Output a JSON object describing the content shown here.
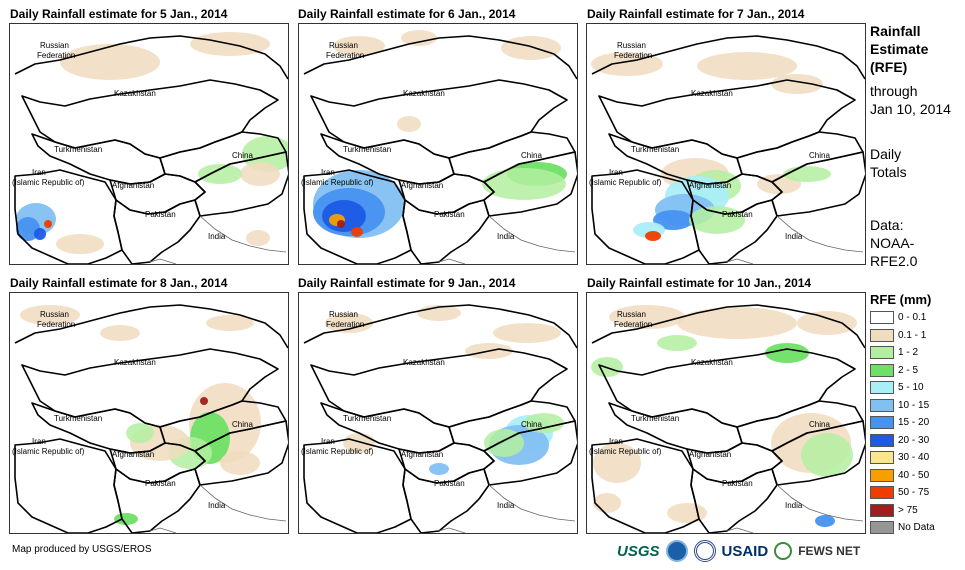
{
  "panels": [
    {
      "title": "Daily Rainfall estimate for 5 Jan., 2014"
    },
    {
      "title": "Daily Rainfall estimate for 6 Jan., 2014"
    },
    {
      "title": "Daily Rainfall estimate for 7 Jan., 2014"
    },
    {
      "title": "Daily Rainfall estimate for 8 Jan., 2014"
    },
    {
      "title": "Daily Rainfall estimate for 9 Jan., 2014"
    },
    {
      "title": "Daily Rainfall estimate for 10 Jan., 2014"
    }
  ],
  "countries": {
    "russia_1": "Russian",
    "russia_2": "Federation",
    "kazakhstan": "Kazakhstan",
    "turkmenistan": "Turkmenistan",
    "iran_1": "Iran",
    "iran_2": "(Islamic Republic of)",
    "afghanistan": "Afghanistan",
    "pakistan": "Pakistan",
    "china": "China",
    "india": "India"
  },
  "side": {
    "title_1": "Rainfall",
    "title_2": "Estimate",
    "title_3": "(RFE)",
    "through_1": "through",
    "through_2": "Jan 10, 2014",
    "totals_1": "Daily",
    "totals_2": "Totals",
    "data_1": "Data:",
    "data_2": "NOAA-",
    "data_3": "RFE2.0"
  },
  "legend": {
    "title": "RFE (mm)",
    "items": [
      {
        "label": "0 - 0.1",
        "color": "#ffffff"
      },
      {
        "label": "0.1 - 1",
        "color": "#f0dcbe"
      },
      {
        "label": "1 - 2",
        "color": "#b4eea0"
      },
      {
        "label": "2 - 5",
        "color": "#6ee066"
      },
      {
        "label": "5 - 10",
        "color": "#aaeef8"
      },
      {
        "label": "10 - 15",
        "color": "#82c0f2"
      },
      {
        "label": "15 - 20",
        "color": "#4692f0"
      },
      {
        "label": "20 - 30",
        "color": "#1e5ae6"
      },
      {
        "label": "30 - 40",
        "color": "#fae68c"
      },
      {
        "label": "40 - 50",
        "color": "#f5a000"
      },
      {
        "label": "50 - 75",
        "color": "#f03c00"
      },
      {
        "label": "> 75",
        "color": "#a01e1e"
      },
      {
        "label": "No Data",
        "color": "#969696"
      }
    ]
  },
  "footer": {
    "credit": "Map produced by USGS/EROS",
    "logos": [
      "USGS",
      "NOAA",
      "USAID",
      "FEWS NET"
    ]
  },
  "chart_data": {
    "type": "heatmap",
    "panel_dates": [
      "5 Jan., 2014",
      "6 Jan., 2014",
      "7 Jan., 2014",
      "8 Jan., 2014",
      "9 Jan., 2014",
      "10 Jan., 2014"
    ],
    "legend_classes_mm": [
      "0 - 0.1",
      "0.1 - 1",
      "1 - 2",
      "2 - 5",
      "5 - 10",
      "10 - 15",
      "15 - 20",
      "20 - 30",
      "30 - 40",
      "40 - 50",
      "50 - 75",
      "> 75",
      "No Data"
    ]
  }
}
